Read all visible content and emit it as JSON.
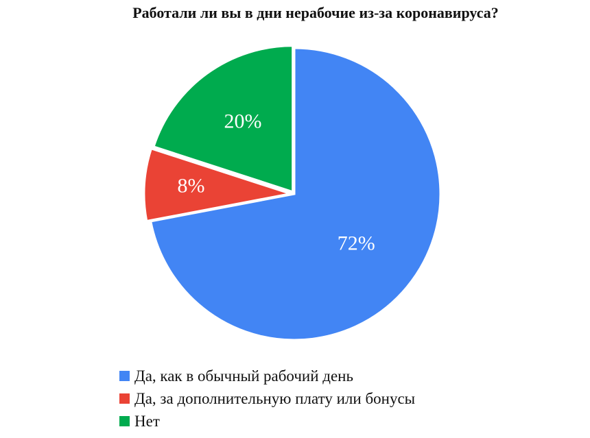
{
  "chart_data": {
    "type": "pie",
    "title": "Работали ли вы в дни нерабочие из-за коронавируса?",
    "categories": [
      "Да, как в обычный рабочий день",
      "Да, за дополнительную плату или бонусы",
      "Нет"
    ],
    "values": [
      72,
      8,
      20
    ],
    "data_labels": [
      "72%",
      "8%",
      "20%"
    ],
    "colors": [
      "#4285f4",
      "#ea4335",
      "#00ab4e"
    ],
    "legend_position": "bottom"
  },
  "legend": {
    "items": [
      {
        "label": "Да, как в обычный рабочий день",
        "color": "#4285f4"
      },
      {
        "label": "Да, за дополнительную плату или бонусы",
        "color": "#ea4335"
      },
      {
        "label": "Нет",
        "color": "#00ab4e"
      }
    ]
  }
}
